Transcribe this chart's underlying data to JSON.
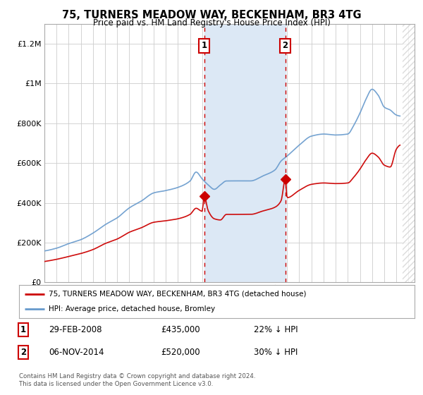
{
  "title": "75, TURNERS MEADOW WAY, BECKENHAM, BR3 4TG",
  "subtitle": "Price paid vs. HM Land Registry's House Price Index (HPI)",
  "ytick_values": [
    0,
    200000,
    400000,
    600000,
    800000,
    1000000,
    1200000
  ],
  "ylim": [
    0,
    1300000
  ],
  "xlim_start": 1995.0,
  "xlim_end": 2025.5,
  "hatch_start": 2024.5,
  "sale1_date": 2008.17,
  "sale1_price": 435000,
  "sale1_label": "1",
  "sale1_text": "29-FEB-2008",
  "sale1_amount": "£435,000",
  "sale1_pct": "22% ↓ HPI",
  "sale2_date": 2014.85,
  "sale2_price": 520000,
  "sale2_label": "2",
  "sale2_text": "06-NOV-2014",
  "sale2_amount": "£520,000",
  "sale2_pct": "30% ↓ HPI",
  "line1_color": "#cc0000",
  "line2_color": "#6699cc",
  "shaded_color": "#dce8f5",
  "dashed_color": "#cc0000",
  "marker_color": "#cc0000",
  "legend1_label": "75, TURNERS MEADOW WAY, BECKENHAM, BR3 4TG (detached house)",
  "legend2_label": "HPI: Average price, detached house, Bromley",
  "footnote": "Contains HM Land Registry data © Crown copyright and database right 2024.\nThis data is licensed under the Open Government Licence v3.0.",
  "background_color": "#ffffff",
  "grid_color": "#cccccc"
}
